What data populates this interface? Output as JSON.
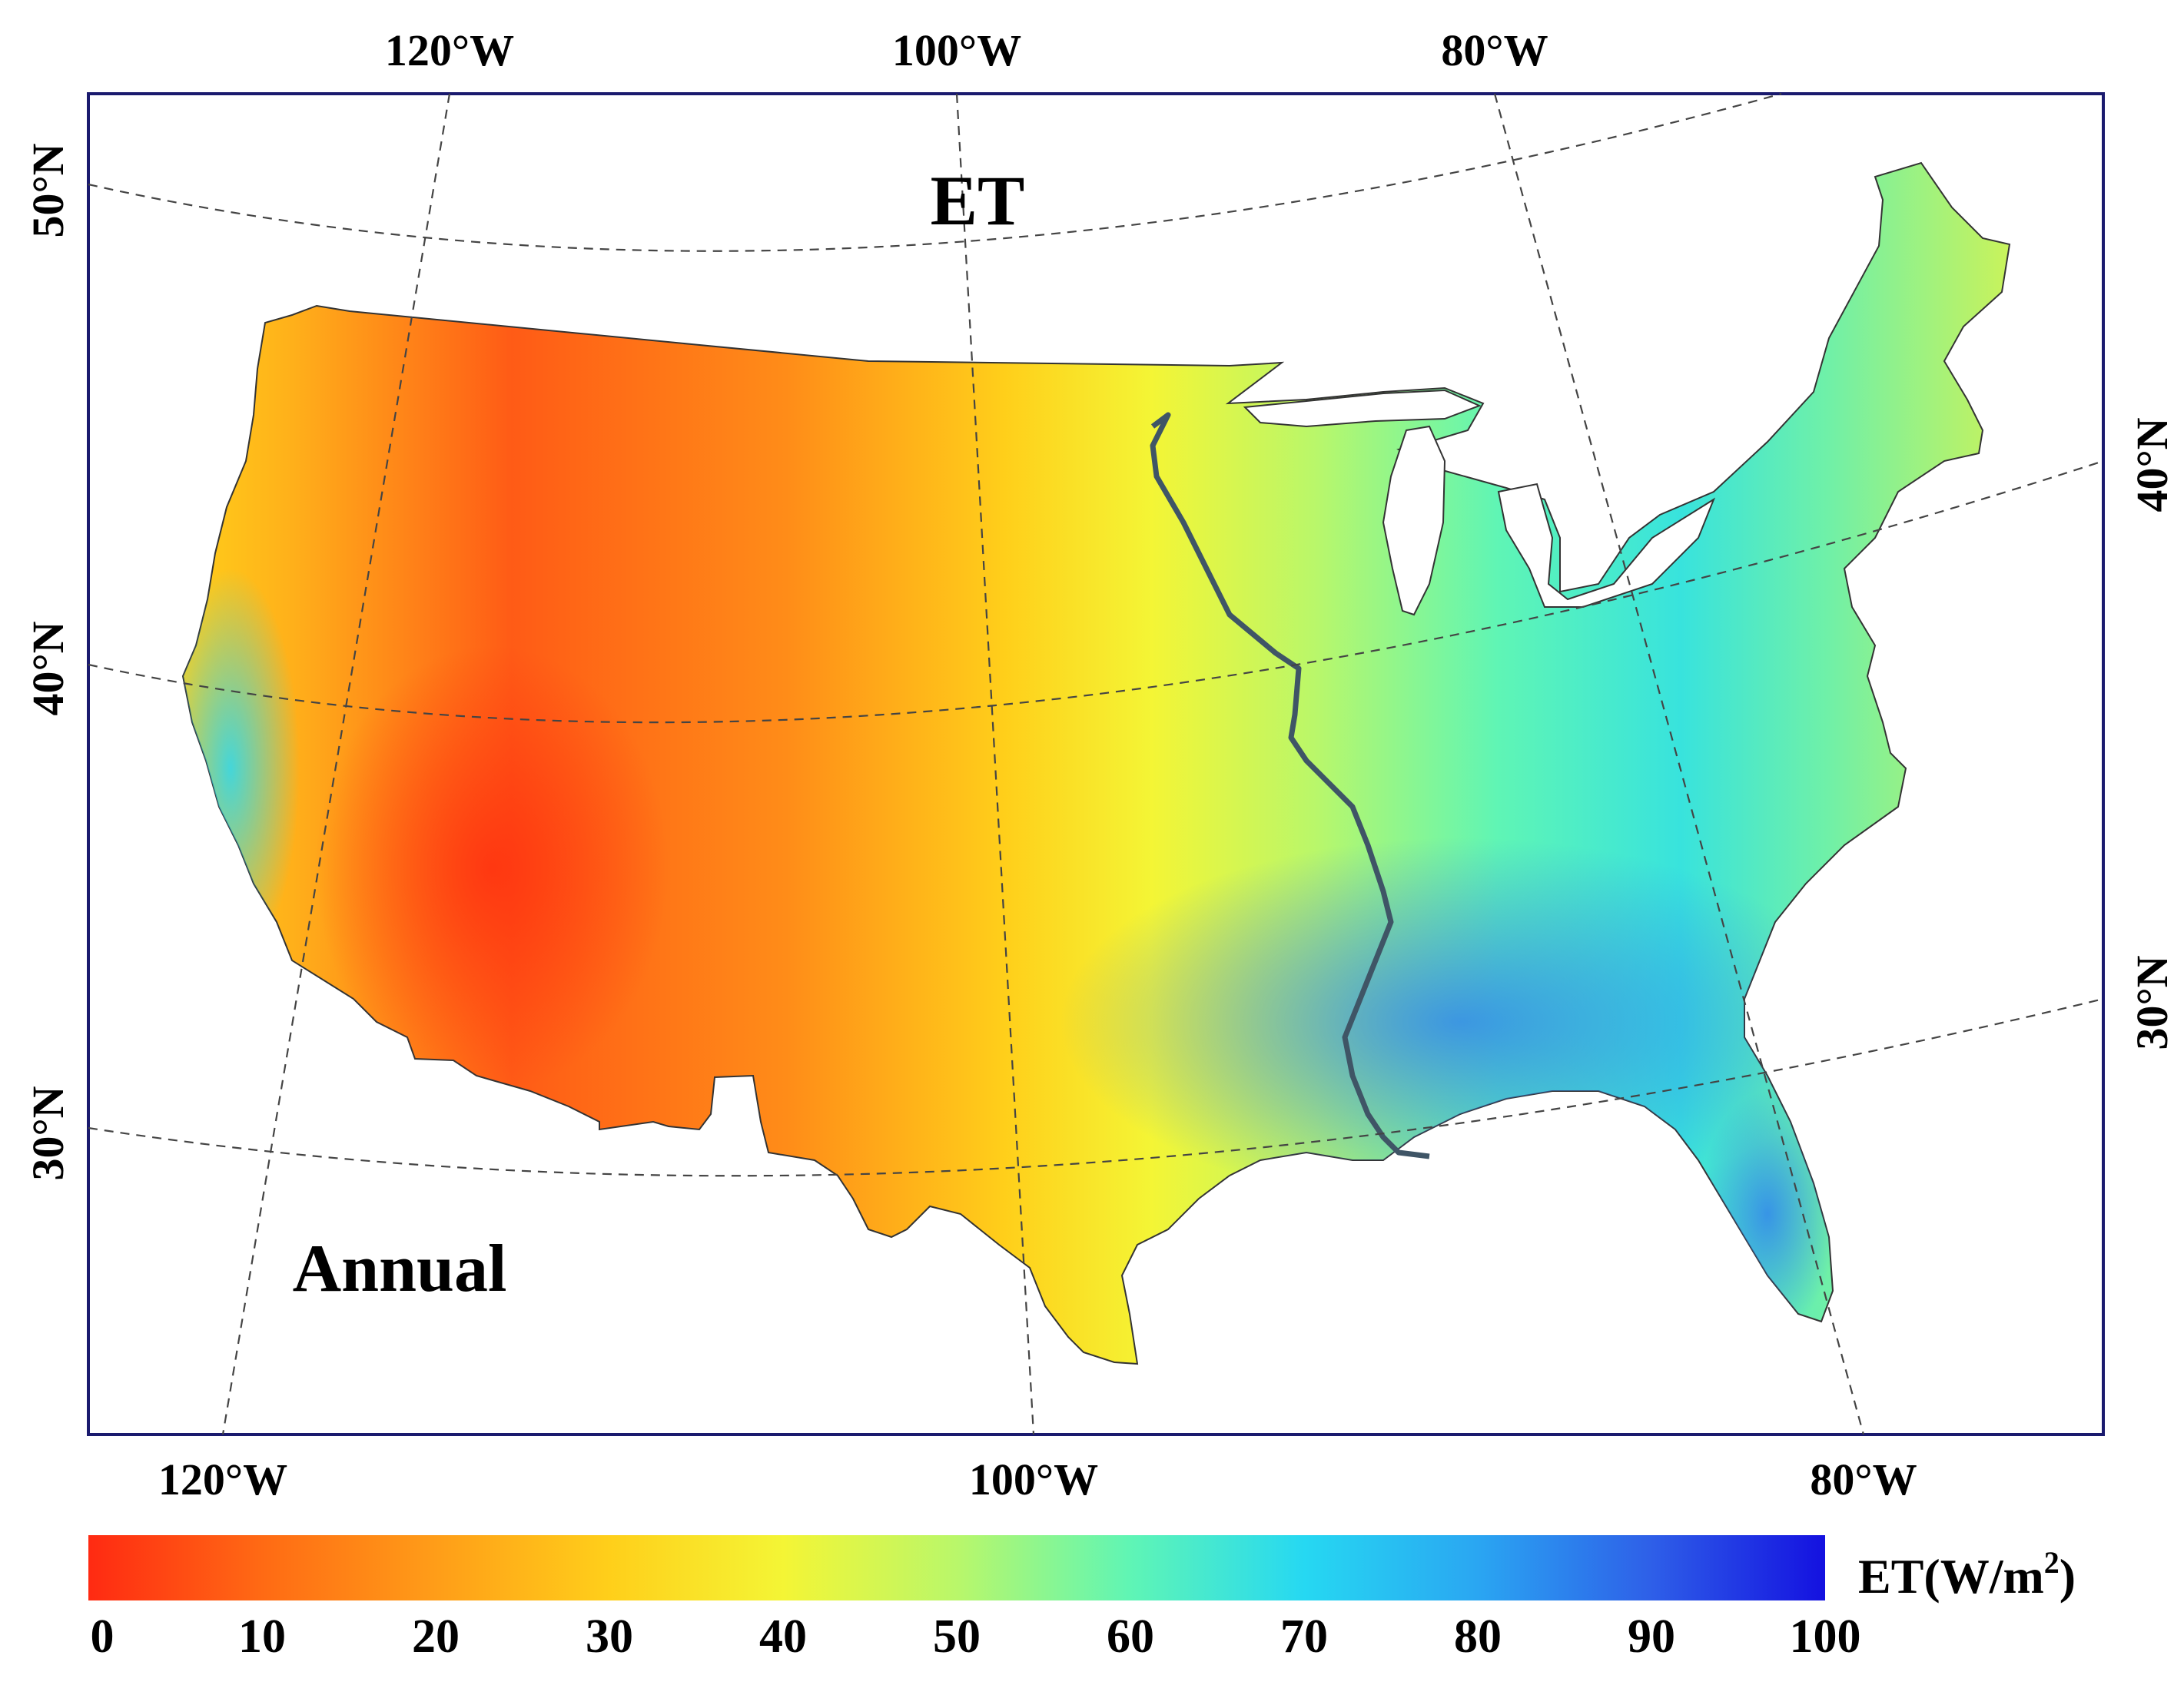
{
  "map": {
    "title": "ET",
    "period": "Annual",
    "top_lon_labels": [
      "120°W",
      "100°W",
      "80°W"
    ],
    "bottom_lon_labels": [
      "120°W",
      "100°W",
      "80°W"
    ],
    "left_lat_labels": [
      "50°N",
      "40°N",
      "30°N"
    ],
    "right_lat_labels": [
      "40°N",
      "30°N"
    ]
  },
  "colorbar": {
    "label": "ET(W/m",
    "label_sup": "2",
    "label_close": ")",
    "ticks": [
      "0",
      "10",
      "20",
      "30",
      "40",
      "50",
      "60",
      "70",
      "80",
      "90",
      "100"
    ],
    "min": 0,
    "max": 100,
    "stops": [
      {
        "value": 0,
        "color": "#ff2a12"
      },
      {
        "value": 10,
        "color": "#ff6a14"
      },
      {
        "value": 20,
        "color": "#ff9d18"
      },
      {
        "value": 30,
        "color": "#ffcf1a"
      },
      {
        "value": 40,
        "color": "#f4f535"
      },
      {
        "value": 50,
        "color": "#b9f76a"
      },
      {
        "value": 60,
        "color": "#5ff5b5"
      },
      {
        "value": 70,
        "color": "#26d8f2"
      },
      {
        "value": 80,
        "color": "#2aa6f2"
      },
      {
        "value": 90,
        "color": "#2e5fe8"
      },
      {
        "value": 100,
        "color": "#1411e0"
      }
    ]
  },
  "colors": {
    "frame": "#1a1a6e",
    "graticule": "#444444",
    "river": "#3f5566",
    "lakes": "#ffffff"
  }
}
